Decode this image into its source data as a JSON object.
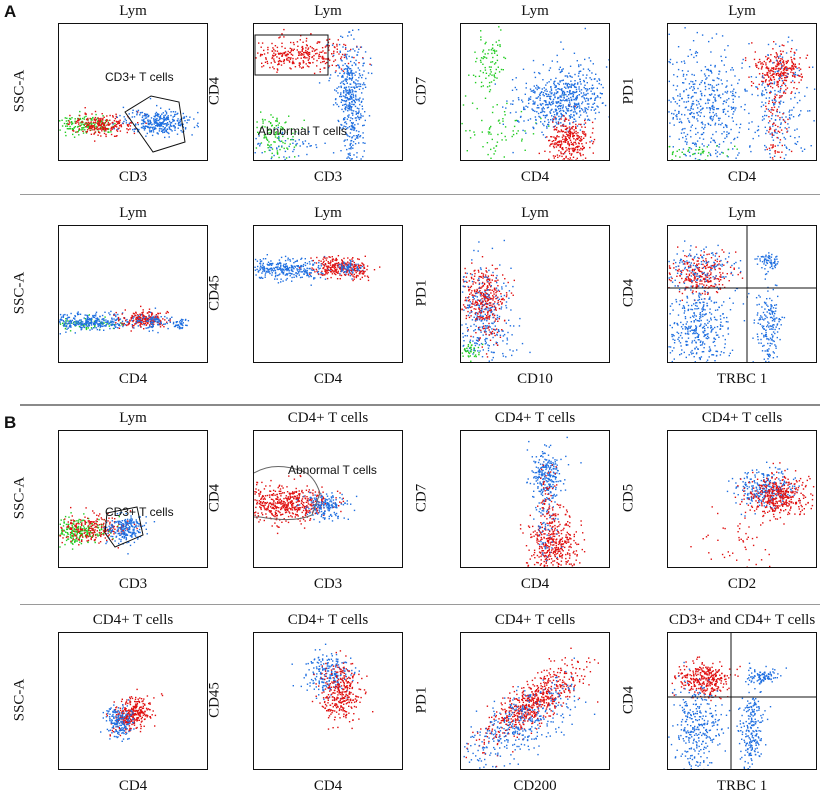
{
  "figure": {
    "section_a_label": "A",
    "section_b_label": "B",
    "panels": [
      {
        "id": "a1",
        "section": "A",
        "title": "Lym",
        "xlabel": "CD3",
        "ylabel": "SSC-A",
        "gate": "CD3+ T cells"
      },
      {
        "id": "a2",
        "section": "A",
        "title": "Lym",
        "xlabel": "CD3",
        "ylabel": "CD4",
        "gate": "Abnormal T cells"
      },
      {
        "id": "a3",
        "section": "A",
        "title": "Lym",
        "xlabel": "CD4",
        "ylabel": "CD7",
        "gate": ""
      },
      {
        "id": "a4",
        "section": "A",
        "title": "Lym",
        "xlabel": "CD4",
        "ylabel": "PD1",
        "gate": ""
      },
      {
        "id": "a5",
        "section": "A",
        "title": "Lym",
        "xlabel": "CD4",
        "ylabel": "SSC-A",
        "gate": ""
      },
      {
        "id": "a6",
        "section": "A",
        "title": "Lym",
        "xlabel": "CD4",
        "ylabel": "CD45",
        "gate": ""
      },
      {
        "id": "a7",
        "section": "A",
        "title": "Lym",
        "xlabel": "CD10",
        "ylabel": "PD1",
        "gate": ""
      },
      {
        "id": "a8",
        "section": "A",
        "title": "Lym",
        "xlabel": "TRBC 1",
        "ylabel": "CD4",
        "gate": ""
      },
      {
        "id": "b1",
        "section": "B",
        "title": "Lym",
        "xlabel": "CD3",
        "ylabel": "SSC-A",
        "gate": "CD3+ T cells"
      },
      {
        "id": "b2",
        "section": "B",
        "title": "CD4+ T cells",
        "xlabel": "CD3",
        "ylabel": "CD4",
        "gate": "Abnormal T cells"
      },
      {
        "id": "b3",
        "section": "B",
        "title": "CD4+ T cells",
        "xlabel": "CD4",
        "ylabel": "CD7",
        "gate": ""
      },
      {
        "id": "b4",
        "section": "B",
        "title": "CD4+ T cells",
        "xlabel": "CD2",
        "ylabel": "CD5",
        "gate": ""
      },
      {
        "id": "b5",
        "section": "B",
        "title": "CD4+ T cells",
        "xlabel": "CD4",
        "ylabel": "SSC-A",
        "gate": ""
      },
      {
        "id": "b6",
        "section": "B",
        "title": "CD4+ T cells",
        "xlabel": "CD4",
        "ylabel": "CD45",
        "gate": ""
      },
      {
        "id": "b7",
        "section": "B",
        "title": "CD4+ T cells",
        "xlabel": "CD200",
        "ylabel": "PD1",
        "gate": ""
      },
      {
        "id": "b8",
        "section": "B",
        "title": "CD3+ and CD4+ T cells",
        "xlabel": "TRBC 1",
        "ylabel": "CD4",
        "gate": ""
      }
    ]
  },
  "colors": {
    "blue": "#1f6fe0",
    "red": "#e01010",
    "green": "#22cc22"
  }
}
